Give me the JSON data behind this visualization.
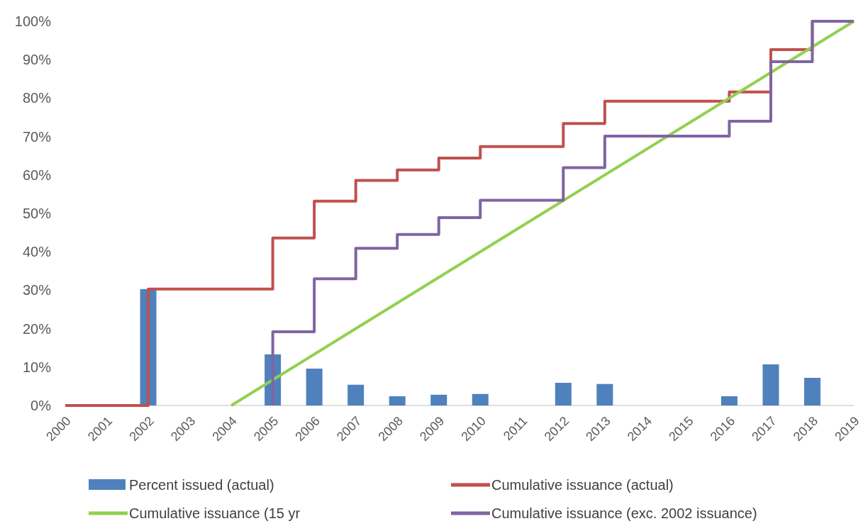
{
  "chart_data": {
    "type": "bar",
    "legend": "bottom",
    "xlim": [
      2000,
      2019
    ],
    "xticks": [
      2000,
      2001,
      2002,
      2003,
      2004,
      2005,
      2006,
      2007,
      2008,
      2009,
      2010,
      2011,
      2012,
      2013,
      2014,
      2015,
      2016,
      2017,
      2018,
      2019
    ],
    "ylim": [
      0,
      100
    ],
    "yticks": [
      {
        "value": 0,
        "label": "0%"
      },
      {
        "value": 10,
        "label": "10%"
      },
      {
        "value": 20,
        "label": "20%"
      },
      {
        "value": 30,
        "label": "30%"
      },
      {
        "value": 40,
        "label": "40%"
      },
      {
        "value": 50,
        "label": "50%"
      },
      {
        "value": 60,
        "label": "60%"
      },
      {
        "value": 70,
        "label": "70%"
      },
      {
        "value": 80,
        "label": "80%"
      },
      {
        "value": 90,
        "label": "90%"
      },
      {
        "value": 100,
        "label": "100%"
      }
    ],
    "series": [
      {
        "name": "Percent issued (actual)",
        "color": "#4f81bd",
        "x": [
          2002,
          2005,
          2006,
          2007,
          2008,
          2009,
          2010,
          2012,
          2013,
          2016,
          2017,
          2018
        ],
        "values": [
          30.3,
          13.3,
          9.6,
          5.4,
          2.4,
          2.8,
          3.0,
          5.9,
          5.6,
          2.4,
          10.7,
          7.2
        ]
      },
      {
        "name": "Cumulative issuance (actual)",
        "type": "step",
        "color": "#c0504d",
        "x": [
          2000,
          2002,
          2005,
          2006,
          2007,
          2008,
          2009,
          2010,
          2012,
          2013,
          2016,
          2017,
          2018,
          2019
        ],
        "values": [
          0,
          30.3,
          43.6,
          53.2,
          58.6,
          61.3,
          64.4,
          67.4,
          73.4,
          79.2,
          81.6,
          92.6,
          100,
          100
        ]
      },
      {
        "name": "Cumulative issuance (15 yr",
        "type": "line",
        "color": "#92d050",
        "x": [
          2004,
          2019
        ],
        "values": [
          0,
          100
        ]
      },
      {
        "name": "Cumulative issuance (exc. 2002 issuance)",
        "type": "step",
        "color": "#8064a2",
        "x": [
          2005,
          2005,
          2006,
          2007,
          2008,
          2009,
          2010,
          2012,
          2013,
          2016,
          2017,
          2018,
          2019
        ],
        "values": [
          0,
          19.2,
          33.0,
          40.9,
          44.5,
          48.9,
          53.4,
          61.9,
          70.1,
          74.0,
          89.5,
          100,
          100
        ]
      }
    ]
  }
}
